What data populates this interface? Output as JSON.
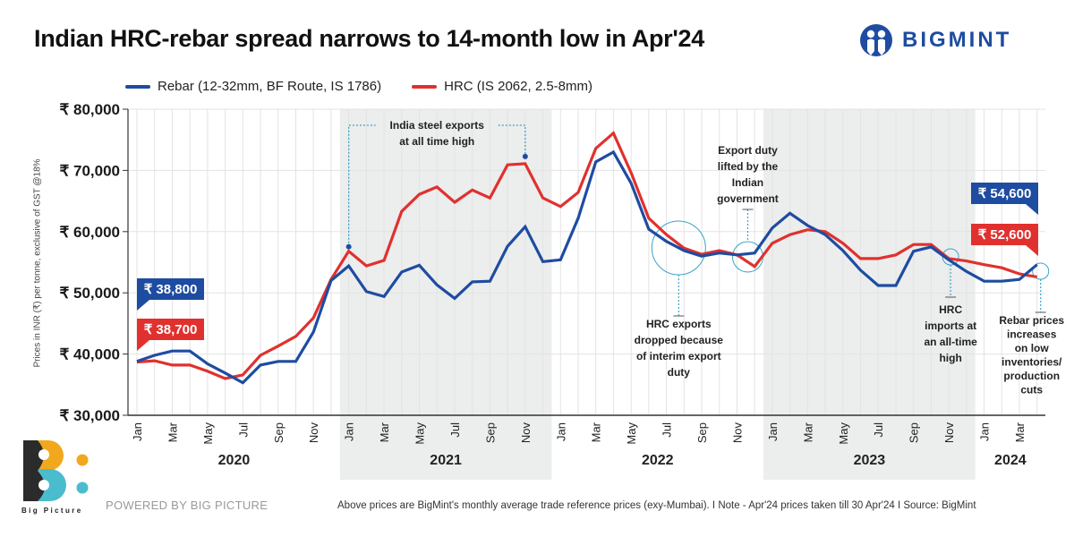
{
  "header": {
    "title": "Indian HRC-rebar spread narrows to 14-month low in Apr'24",
    "brand": "BIGMINT"
  },
  "legend": [
    {
      "label": "Rebar (12-32mm, BF Route, IS 1786)",
      "color": "#1e4ca1"
    },
    {
      "label": "HRC (IS 2062, 2.5-8mm)",
      "color": "#e0312f"
    }
  ],
  "footer": {
    "powered_by": "POWERED BY BIG PICTURE",
    "logo_label": "Big Picture",
    "note": "Above prices are BigMint's monthly average trade reference prices (exy-Mumbai).  I  Note - Apr'24 prices taken till  30 Apr'24  I  Source: BigMint"
  },
  "chart_data": {
    "type": "line",
    "title": "Indian HRC-rebar spread narrows to 14-month low in Apr'24",
    "ylabel": "Prices in INR (₹) per tonne, exclusive of GST @18%",
    "xlabel": "",
    "ylim": [
      30000,
      80000
    ],
    "yticks": [
      30000,
      40000,
      50000,
      60000,
      70000,
      80000
    ],
    "ytick_labels": [
      "₹ 30,000",
      "₹ 40,000",
      "₹ 50,000",
      "₹ 60,000",
      "₹ 70,000",
      "₹ 80,000"
    ],
    "grid": true,
    "legend_position": "top-left",
    "x": [
      "Jan 2020",
      "Feb 2020",
      "Mar 2020",
      "Apr 2020",
      "May 2020",
      "Jun 2020",
      "Jul 2020",
      "Aug 2020",
      "Sep 2020",
      "Oct 2020",
      "Nov 2020",
      "Dec 2020",
      "Jan 2021",
      "Feb 2021",
      "Mar 2021",
      "Apr 2021",
      "May 2021",
      "Jun 2021",
      "Jul 2021",
      "Aug 2021",
      "Sep 2021",
      "Oct 2021",
      "Nov 2021",
      "Dec 2021",
      "Jan 2022",
      "Feb 2022",
      "Mar 2022",
      "Apr 2022",
      "May 2022",
      "Jun 2022",
      "Jul 2022",
      "Aug 2022",
      "Sep 2022",
      "Oct 2022",
      "Nov 2022",
      "Dec 2022",
      "Jan 2023",
      "Feb 2023",
      "Mar 2023",
      "Apr 2023",
      "May 2023",
      "Jun 2023",
      "Jul 2023",
      "Aug 2023",
      "Sep 2023",
      "Oct 2023",
      "Nov 2023",
      "Dec 2023",
      "Jan 2024",
      "Feb 2024",
      "Mar 2024",
      "Apr 2024"
    ],
    "month_tick_labels": [
      "Jan",
      "Mar",
      "May",
      "Jul",
      "Sep",
      "Nov"
    ],
    "years": [
      {
        "label": "2020",
        "start": 0,
        "end": 11,
        "shaded": false
      },
      {
        "label": "2021",
        "start": 12,
        "end": 23,
        "shaded": true
      },
      {
        "label": "2022",
        "start": 24,
        "end": 35,
        "shaded": false
      },
      {
        "label": "2023",
        "start": 36,
        "end": 47,
        "shaded": true
      },
      {
        "label": "2024",
        "start": 48,
        "end": 51,
        "shaded": false
      }
    ],
    "series": [
      {
        "name": "Rebar (12-32mm, BF Route, IS 1786)",
        "color": "#1e4ca1",
        "values": [
          38800,
          39800,
          40500,
          40500,
          38400,
          36900,
          35300,
          38200,
          38800,
          38800,
          43600,
          52000,
          54400,
          50200,
          49400,
          53400,
          54500,
          51300,
          49100,
          51800,
          51900,
          57600,
          60800,
          55100,
          55400,
          62200,
          71400,
          73000,
          67900,
          60400,
          58400,
          56900,
          56000,
          56500,
          56200,
          56500,
          60600,
          63000,
          61000,
          59500,
          56900,
          53700,
          51200,
          51200,
          56800,
          57500,
          55400,
          53500,
          51900,
          51900,
          52200,
          54600
        ]
      },
      {
        "name": "HRC (IS 2062, 2.5-8mm)",
        "color": "#e0312f",
        "values": [
          38700,
          38900,
          38200,
          38200,
          37200,
          36000,
          36600,
          39800,
          41300,
          42900,
          45900,
          52200,
          56800,
          54400,
          55300,
          63300,
          66100,
          67300,
          64800,
          66800,
          65500,
          70900,
          71100,
          65500,
          64100,
          66400,
          73600,
          76100,
          69600,
          62200,
          59500,
          57300,
          56300,
          56900,
          56200,
          54300,
          58100,
          59500,
          60300,
          60000,
          58100,
          55600,
          55600,
          56200,
          57900,
          57900,
          55600,
          55200,
          54600,
          54100,
          53100,
          52600
        ]
      }
    ],
    "value_callouts": [
      {
        "series": 0,
        "index": 0,
        "label": "₹ 38,800"
      },
      {
        "series": 1,
        "index": 0,
        "label": "₹ 38,700"
      },
      {
        "series": 0,
        "index": 51,
        "label": "₹ 54,600"
      },
      {
        "series": 1,
        "index": 51,
        "label": "₹ 52,600"
      }
    ],
    "annotations": [
      {
        "id": "exports-high",
        "lines": [
          "India steel exports",
          "at all time high"
        ],
        "from_index": 12,
        "to_index": 22
      },
      {
        "id": "export-duty",
        "lines": [
          "HRC exports",
          "dropped because",
          "of interim export",
          "duty"
        ],
        "index": 31
      },
      {
        "id": "duty-lifted",
        "lines": [
          "Export duty",
          "lifted by the",
          "Indian",
          "government"
        ],
        "index": 34
      },
      {
        "id": "hrc-imports",
        "lines": [
          "HRC",
          "imports at",
          "an all-time",
          "high"
        ],
        "index": 46
      },
      {
        "id": "rebar-rise",
        "lines": [
          "Rebar prices",
          "increases",
          "on low",
          "inventories/",
          "production",
          "cuts"
        ],
        "index": 51
      }
    ]
  }
}
